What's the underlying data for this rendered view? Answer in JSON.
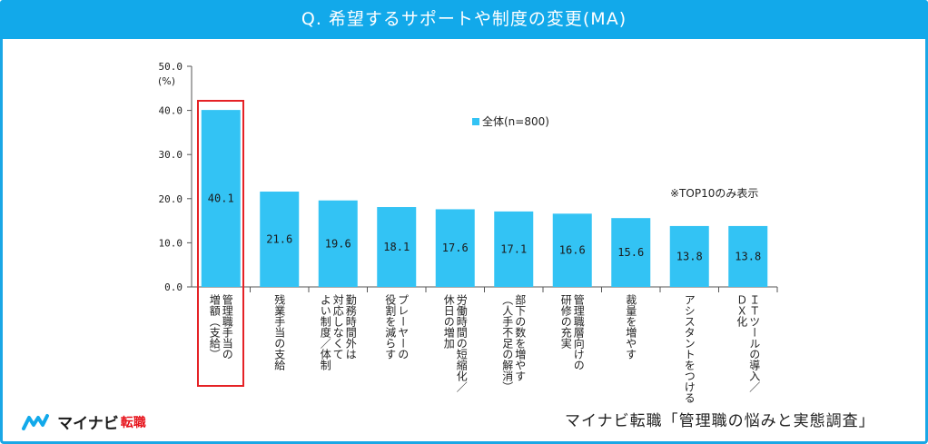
{
  "header": {
    "title": "Q. 希望するサポートや制度の変更(MA)"
  },
  "legend": {
    "label": "全体(n=800)"
  },
  "note": "※TOP10のみ表示",
  "source": "マイナビ転職「管理職の悩みと実態調査」",
  "logo": {
    "brand": "マイナビ",
    "brand2": "転職"
  },
  "colors": {
    "header": "#12a9ea",
    "bar": "#33c3f4",
    "highlight": "#e52226"
  },
  "chart_data": {
    "type": "bar",
    "unit_label": "(%)",
    "ylim": [
      0,
      50
    ],
    "yticks": [
      "0.0",
      "10.0",
      "20.0",
      "30.0",
      "40.0",
      "50.0"
    ],
    "categories": [
      "管理職手当の\n増額（支給）",
      "残業手当の支給",
      "勤務時間外は\n対応しなくて\nよい制度／体制",
      "プレーヤーの\n役割を減らす",
      "労働時間の短縮化／\n休日の増加",
      "部下の数を増やす\n（人手不足の解消）",
      "管理職層向けの\n研修の充実",
      "裁量を増やす",
      "アシスタントをつける",
      "ＩＴツールの導入／\nＤＸ化"
    ],
    "series": [
      {
        "name": "全体(n=800)",
        "values": [
          40.1,
          21.6,
          19.6,
          18.1,
          17.6,
          17.1,
          16.6,
          15.6,
          13.8,
          13.8
        ]
      }
    ],
    "value_labels": [
      "40.1",
      "21.6",
      "19.6",
      "18.1",
      "17.6",
      "17.1",
      "16.6",
      "15.6",
      "13.8",
      "13.8"
    ],
    "grid": false,
    "legend_position": "top-center",
    "highlighted_category_index": 0
  }
}
